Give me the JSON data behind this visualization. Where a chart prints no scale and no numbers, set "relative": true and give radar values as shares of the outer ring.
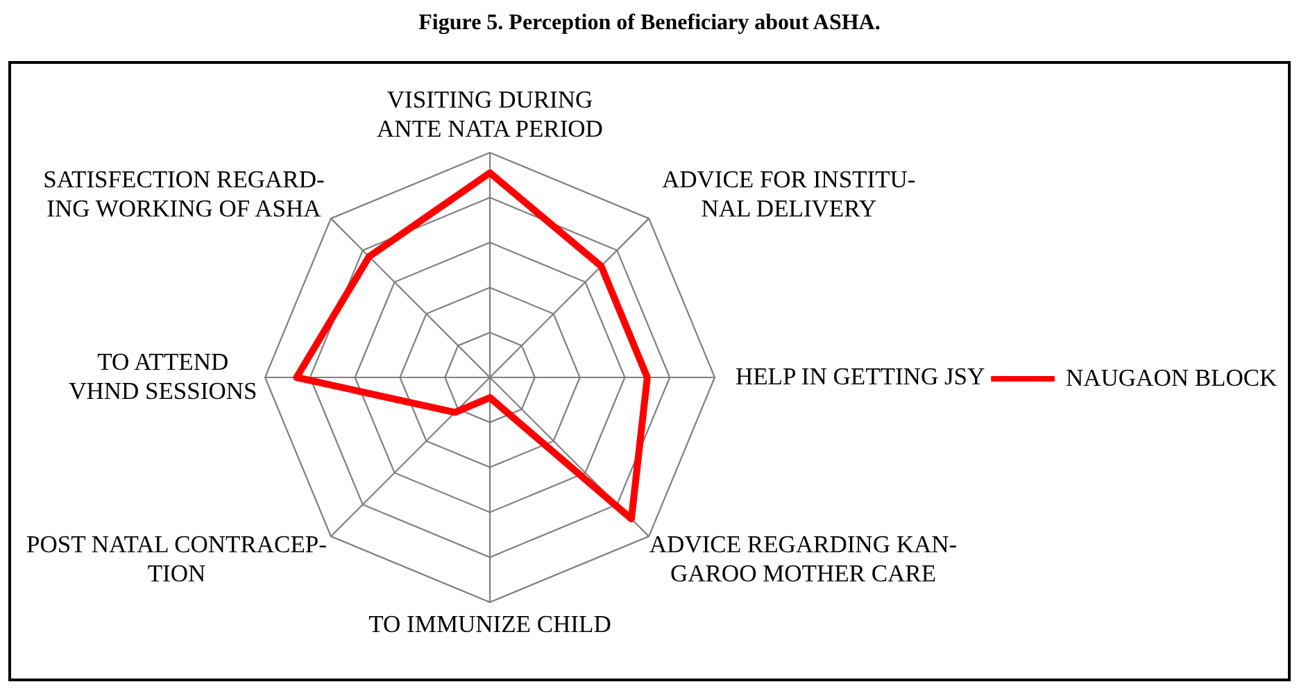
{
  "chart_data": {
    "type": "radar",
    "title": "Figure 5. Perception of Beneficiary about ASHA.",
    "categories": [
      "VISITING DURING\nANTE NATA PERIOD",
      "ADVICE FOR INSTITU-\nNAL DELIVERY",
      "HELP IN GETTING JSY",
      "ADVICE REGARDING KAN-\nGAROO MOTHER CARE",
      "TO IMMUNIZE CHILD",
      "POST NATAL CONTRACEP-\nTION",
      "TO ATTEND\nVHND SESSIONS",
      "SATISFECTION REGARD-\nING WORKING OF ASHA"
    ],
    "relative": true,
    "series": [
      {
        "name": "NAUGAON BLOCK",
        "color": "#ff0000",
        "values": [
          0.91,
          0.7,
          0.7,
          0.89,
          0.09,
          0.22,
          0.86,
          0.76
        ]
      }
    ],
    "grid": true,
    "legend": "right"
  }
}
